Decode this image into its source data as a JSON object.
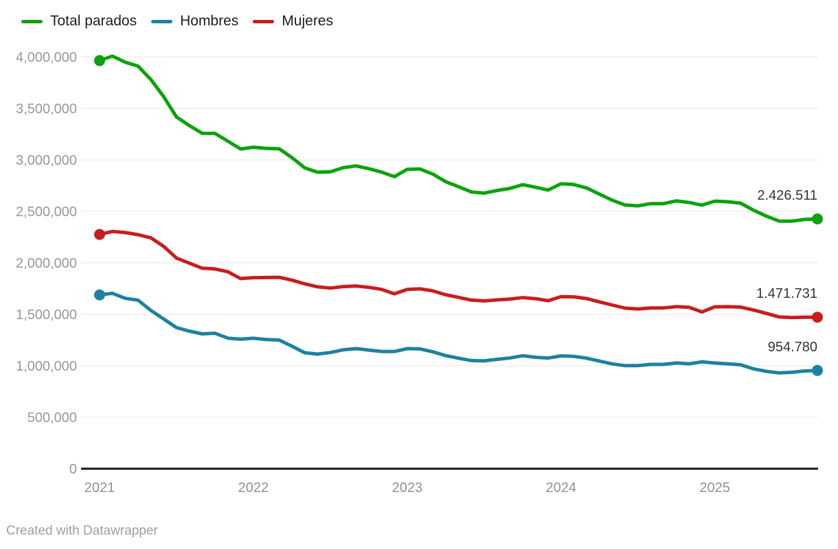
{
  "legend": {
    "items": [
      {
        "label": "Total parados",
        "color": "#0ba30b"
      },
      {
        "label": "Hombres",
        "color": "#1d81a2"
      },
      {
        "label": "Mujeres",
        "color": "#c71e1d"
      }
    ]
  },
  "footer": {
    "text": "Created with Datawrapper"
  },
  "chart_data": {
    "type": "line",
    "grid": "horizontal",
    "legend_position": "top-left",
    "ylim": [
      0,
      4000000
    ],
    "x": [
      "2021-01",
      "2021-02",
      "2021-03",
      "2021-04",
      "2021-05",
      "2021-06",
      "2021-07",
      "2021-08",
      "2021-09",
      "2021-10",
      "2021-11",
      "2021-12",
      "2022-01",
      "2022-02",
      "2022-03",
      "2022-04",
      "2022-05",
      "2022-06",
      "2022-07",
      "2022-08",
      "2022-09",
      "2022-10",
      "2022-11",
      "2022-12",
      "2023-01",
      "2023-02",
      "2023-03",
      "2023-04",
      "2023-05",
      "2023-06",
      "2023-07",
      "2023-08",
      "2023-09",
      "2023-10",
      "2023-11",
      "2023-12",
      "2024-01",
      "2024-02",
      "2024-03",
      "2024-04",
      "2024-05",
      "2024-06",
      "2024-07",
      "2024-08",
      "2024-09",
      "2024-10",
      "2024-11",
      "2024-12",
      "2025-01",
      "2025-02",
      "2025-03",
      "2025-04",
      "2025-05",
      "2025-06",
      "2025-07",
      "2025-08",
      "2025-09"
    ],
    "x_ticks": [
      {
        "index": 0,
        "label": "2021"
      },
      {
        "index": 12,
        "label": "2022"
      },
      {
        "index": 24,
        "label": "2023"
      },
      {
        "index": 36,
        "label": "2024"
      },
      {
        "index": 48,
        "label": "2025"
      }
    ],
    "y_ticks": [
      {
        "value": 0,
        "label": "0"
      },
      {
        "value": 500000,
        "label": "500,000"
      },
      {
        "value": 1000000,
        "label": "1,000,000"
      },
      {
        "value": 1500000,
        "label": "1,500,000"
      },
      {
        "value": 2000000,
        "label": "2,000,000"
      },
      {
        "value": 2500000,
        "label": "2,500,000"
      },
      {
        "value": 3000000,
        "label": "3,000,000"
      },
      {
        "value": 3500000,
        "label": "3,500,000"
      },
      {
        "value": 4000000,
        "label": "4,000,000"
      }
    ],
    "series": [
      {
        "name": "Total parados",
        "color": "#0ba30b",
        "end_label": "2.426.511",
        "values": [
          3964353,
          4008789,
          3949640,
          3910628,
          3781250,
          3614339,
          3416498,
          3333915,
          3257802,
          3257068,
          3182687,
          3105905,
          3123078,
          3111684,
          3108763,
          3022503,
          2922991,
          2880582,
          2883812,
          2924240,
          2941940,
          2914892,
          2881380,
          2837653,
          2908397,
          2911015,
          2862260,
          2788370,
          2739110,
          2688842,
          2677152,
          2702700,
          2722468,
          2759404,
          2734831,
          2707456,
          2767860,
          2760408,
          2727003,
          2666500,
          2607850,
          2561067,
          2553296,
          2575180,
          2575085,
          2602054,
          2586018,
          2560718,
          2599443,
          2593449,
          2580138,
          2512718,
          2454883,
          2405963,
          2404606,
          2421665,
          2426511
        ]
      },
      {
        "name": "Hombres",
        "color": "#1d81a2",
        "end_label": "954.780",
        "values": [
          1688612,
          1703989,
          1655640,
          1637128,
          1538250,
          1454339,
          1370498,
          1336915,
          1309802,
          1316068,
          1268687,
          1258905,
          1267078,
          1254684,
          1249763,
          1190503,
          1126991,
          1113582,
          1128812,
          1155240,
          1166940,
          1152892,
          1139380,
          1138653,
          1166397,
          1164015,
          1135260,
          1098370,
          1074110,
          1050842,
          1047152,
          1062700,
          1075468,
          1097404,
          1082831,
          1075456,
          1095860,
          1091408,
          1074003,
          1045500,
          1017850,
          1001067,
          1001296,
          1013180,
          1013085,
          1027054,
          1019018,
          1037718,
          1026443,
          1019449,
          1010138,
          970718,
          945883,
          930963,
          936606,
          949665,
          954780
        ]
      },
      {
        "name": "Mujeres",
        "color": "#c71e1d",
        "end_label": "1.471.731",
        "values": [
          2275741,
          2304800,
          2294000,
          2273500,
          2243000,
          2160000,
          2046000,
          1997000,
          1948000,
          1941000,
          1914000,
          1847000,
          1856000,
          1857000,
          1859000,
          1832000,
          1796000,
          1767000,
          1755000,
          1769000,
          1775000,
          1762000,
          1742000,
          1699000,
          1742000,
          1747000,
          1727000,
          1690000,
          1665000,
          1638000,
          1630000,
          1640000,
          1647000,
          1662000,
          1652000,
          1632000,
          1672000,
          1669000,
          1653000,
          1621000,
          1590000,
          1560000,
          1552000,
          1562000,
          1562000,
          1575000,
          1567000,
          1523000,
          1573000,
          1574000,
          1570000,
          1542000,
          1509000,
          1475000,
          1468000,
          1472000,
          1471731
        ]
      }
    ]
  }
}
